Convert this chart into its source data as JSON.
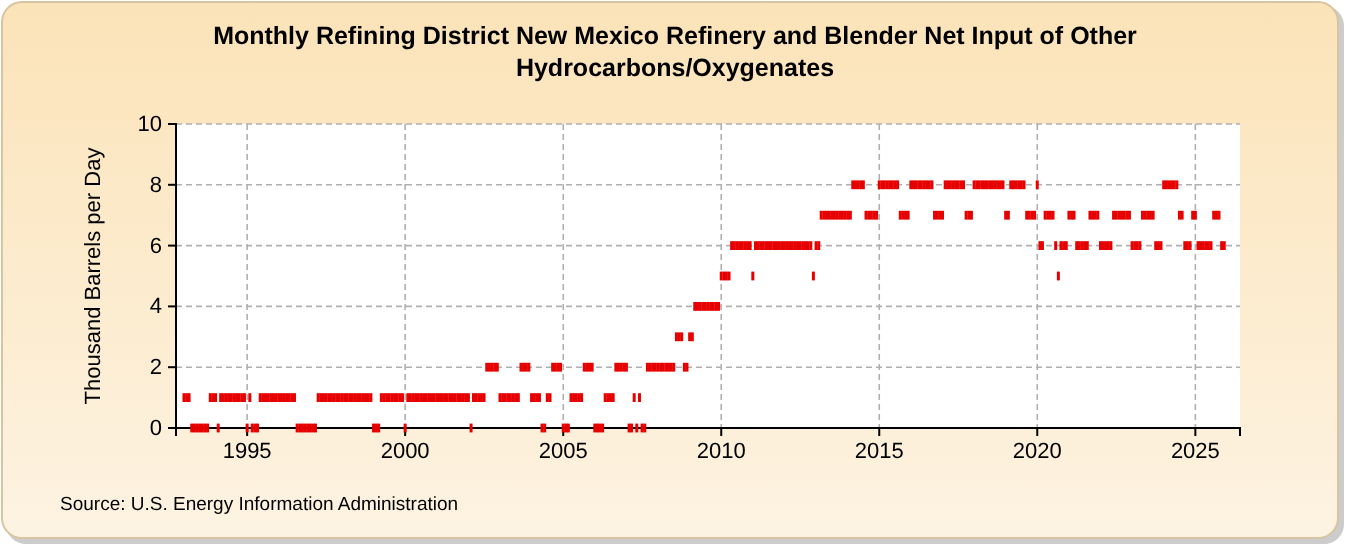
{
  "chart_data": {
    "type": "scatter",
    "title": "Monthly Refining District New Mexico Refinery and Blender Net Input of Other Hydrocarbons/Oxygenates",
    "ylabel": "Thousand Barrels per Day",
    "annotations": [
      "Source: U.S. Energy Information Administration"
    ],
    "xlim": [
      "1992-10",
      "2026-06"
    ],
    "xticks": [
      "1995",
      "2000",
      "2005",
      "2010",
      "2015",
      "2020",
      "2025"
    ],
    "ylim": [
      0,
      10
    ],
    "yticks": [
      0,
      2,
      4,
      6,
      8,
      10
    ],
    "grid": true,
    "marker": "square",
    "series": [
      {
        "color": "#e60000",
        "x": [
          "1993-01",
          "1993-02",
          "1993-03",
          "1993-04",
          "1993-05",
          "1993-06",
          "1993-07",
          "1993-08",
          "1993-09",
          "1993-10",
          "1993-11",
          "1993-12",
          "1994-01",
          "1994-02",
          "1994-03",
          "1994-04",
          "1994-05",
          "1994-06",
          "1994-07",
          "1994-08",
          "1994-09",
          "1994-10",
          "1994-11",
          "1994-12",
          "1995-01",
          "1995-02",
          "1995-03",
          "1995-04",
          "1995-05",
          "1995-06",
          "1995-07",
          "1995-08",
          "1995-09",
          "1995-10",
          "1995-11",
          "1995-12",
          "1996-01",
          "1996-02",
          "1996-03",
          "1996-04",
          "1996-05",
          "1996-06",
          "1996-07",
          "1996-08",
          "1996-09",
          "1996-10",
          "1996-11",
          "1996-12",
          "1997-01",
          "1997-02",
          "1997-03",
          "1997-04",
          "1997-05",
          "1997-06",
          "1997-07",
          "1997-08",
          "1997-09",
          "1997-10",
          "1997-11",
          "1997-12",
          "1998-01",
          "1998-02",
          "1998-03",
          "1998-04",
          "1998-05",
          "1998-06",
          "1998-07",
          "1998-08",
          "1998-09",
          "1998-10",
          "1998-11",
          "1998-12",
          "1999-01",
          "1999-02",
          "1999-03",
          "1999-04",
          "1999-05",
          "1999-06",
          "1999-07",
          "1999-08",
          "1999-09",
          "1999-10",
          "1999-11",
          "1999-12",
          "2000-01",
          "2000-02",
          "2000-03",
          "2000-04",
          "2000-05",
          "2000-06",
          "2000-07",
          "2000-08",
          "2000-09",
          "2000-10",
          "2000-11",
          "2000-12",
          "2001-01",
          "2001-02",
          "2001-03",
          "2001-04",
          "2001-05",
          "2001-06",
          "2001-07",
          "2001-08",
          "2001-09",
          "2001-10",
          "2001-11",
          "2001-12",
          "2002-01",
          "2002-02",
          "2002-03",
          "2002-04",
          "2002-05",
          "2002-06",
          "2002-07",
          "2002-08",
          "2002-09",
          "2002-10",
          "2002-11",
          "2002-12",
          "2003-01",
          "2003-02",
          "2003-03",
          "2003-04",
          "2003-05",
          "2003-06",
          "2003-07",
          "2003-08",
          "2003-09",
          "2003-10",
          "2003-11",
          "2003-12",
          "2004-01",
          "2004-02",
          "2004-03",
          "2004-04",
          "2004-05",
          "2004-06",
          "2004-07",
          "2004-08",
          "2004-09",
          "2004-10",
          "2004-11",
          "2004-12",
          "2005-01",
          "2005-02",
          "2005-03",
          "2005-04",
          "2005-05",
          "2005-06",
          "2005-07",
          "2005-08",
          "2005-09",
          "2005-10",
          "2005-11",
          "2005-12",
          "2006-01",
          "2006-02",
          "2006-03",
          "2006-04",
          "2006-05",
          "2006-06",
          "2006-07",
          "2006-08",
          "2006-09",
          "2006-10",
          "2006-11",
          "2006-12",
          "2007-01",
          "2007-02",
          "2007-03",
          "2007-04",
          "2007-05",
          "2007-06",
          "2007-07",
          "2007-08",
          "2007-09",
          "2007-10",
          "2007-11",
          "2007-12",
          "2008-01",
          "2008-02",
          "2008-03",
          "2008-04",
          "2008-05",
          "2008-06",
          "2008-07",
          "2008-08",
          "2008-09",
          "2008-10",
          "2008-11",
          "2008-12",
          "2009-01",
          "2009-02",
          "2009-03",
          "2009-04",
          "2009-05",
          "2009-06",
          "2009-07",
          "2009-08",
          "2009-09",
          "2009-10",
          "2009-11",
          "2009-12",
          "2010-01",
          "2010-02",
          "2010-03",
          "2010-04",
          "2010-05",
          "2010-06",
          "2010-07",
          "2010-08",
          "2010-09",
          "2010-10",
          "2010-11",
          "2010-12",
          "2011-01",
          "2011-02",
          "2011-03",
          "2011-04",
          "2011-05",
          "2011-06",
          "2011-07",
          "2011-08",
          "2011-09",
          "2011-10",
          "2011-11",
          "2011-12",
          "2012-01",
          "2012-02",
          "2012-03",
          "2012-04",
          "2012-05",
          "2012-06",
          "2012-07",
          "2012-08",
          "2012-09",
          "2012-10",
          "2012-11",
          "2012-12",
          "2013-01",
          "2013-02",
          "2013-03",
          "2013-04",
          "2013-05",
          "2013-06",
          "2013-07",
          "2013-08",
          "2013-09",
          "2013-10",
          "2013-11",
          "2013-12",
          "2014-01",
          "2014-02",
          "2014-03",
          "2014-04",
          "2014-05",
          "2014-06",
          "2014-07",
          "2014-08",
          "2014-09",
          "2014-10",
          "2014-11",
          "2014-12",
          "2015-01",
          "2015-02",
          "2015-03",
          "2015-04",
          "2015-05",
          "2015-06",
          "2015-07",
          "2015-08",
          "2015-09",
          "2015-10",
          "2015-11",
          "2015-12",
          "2016-01",
          "2016-02",
          "2016-03",
          "2016-04",
          "2016-05",
          "2016-06",
          "2016-07",
          "2016-08",
          "2016-09",
          "2016-10",
          "2016-11",
          "2016-12",
          "2017-01",
          "2017-02",
          "2017-03",
          "2017-04",
          "2017-05",
          "2017-06",
          "2017-07",
          "2017-08",
          "2017-09",
          "2017-10",
          "2017-11",
          "2017-12",
          "2018-01",
          "2018-02",
          "2018-03",
          "2018-04",
          "2018-05",
          "2018-06",
          "2018-07",
          "2018-08",
          "2018-09",
          "2018-10",
          "2018-11",
          "2018-12",
          "2019-01",
          "2019-02",
          "2019-03",
          "2019-04",
          "2019-05",
          "2019-06",
          "2019-07",
          "2019-08",
          "2019-09",
          "2019-10",
          "2019-11",
          "2019-12",
          "2020-01",
          "2020-02",
          "2020-03",
          "2020-04",
          "2020-05",
          "2020-06",
          "2020-07",
          "2020-08",
          "2020-09",
          "2020-10",
          "2020-11",
          "2020-12",
          "2021-01",
          "2021-02",
          "2021-03",
          "2021-04",
          "2021-05",
          "2021-06",
          "2021-07",
          "2021-08",
          "2021-09",
          "2021-10",
          "2021-11",
          "2021-12",
          "2022-01",
          "2022-02",
          "2022-03",
          "2022-04",
          "2022-05",
          "2022-06",
          "2022-07",
          "2022-08",
          "2022-09",
          "2022-10",
          "2022-11",
          "2022-12",
          "2023-01",
          "2023-02",
          "2023-03",
          "2023-04",
          "2023-05",
          "2023-06",
          "2023-07",
          "2023-08",
          "2023-09",
          "2023-10",
          "2023-11",
          "2023-12",
          "2024-01",
          "2024-02",
          "2024-03",
          "2024-04",
          "2024-05",
          "2024-06",
          "2024-07",
          "2024-08",
          "2024-09",
          "2024-10",
          "2024-11",
          "2024-12",
          "2025-01",
          "2025-02",
          "2025-03",
          "2025-04",
          "2025-05",
          "2025-06",
          "2025-07",
          "2025-08",
          "2025-09",
          "2025-10",
          "2025-11",
          "2025-12"
        ],
        "values": [
          1,
          1,
          1,
          0,
          0,
          0,
          0,
          0,
          0,
          0,
          1,
          1,
          1,
          0,
          1,
          1,
          1,
          1,
          1,
          1,
          1,
          1,
          1,
          1,
          0,
          1,
          0,
          0,
          0,
          1,
          1,
          1,
          1,
          1,
          1,
          1,
          1,
          1,
          1,
          1,
          1,
          1,
          1,
          0,
          0,
          0,
          0,
          0,
          0,
          0,
          0,
          1,
          1,
          1,
          1,
          1,
          1,
          1,
          1,
          1,
          1,
          1,
          1,
          1,
          1,
          1,
          1,
          1,
          1,
          1,
          1,
          1,
          0,
          0,
          0,
          1,
          1,
          1,
          1,
          1,
          1,
          1,
          1,
          1,
          0,
          1,
          1,
          1,
          1,
          1,
          1,
          1,
          1,
          1,
          1,
          1,
          1,
          1,
          1,
          1,
          1,
          1,
          1,
          1,
          1,
          1,
          1,
          1,
          1,
          0,
          1,
          1,
          1,
          1,
          1,
          2,
          2,
          2,
          2,
          2,
          1,
          1,
          1,
          1,
          1,
          1,
          1,
          1,
          2,
          2,
          2,
          2,
          1,
          1,
          1,
          1,
          0,
          0,
          1,
          1,
          2,
          2,
          2,
          2,
          0,
          0,
          0,
          1,
          1,
          1,
          1,
          1,
          2,
          2,
          2,
          2,
          0,
          0,
          0,
          0,
          1,
          1,
          1,
          1,
          2,
          2,
          2,
          2,
          2,
          0,
          0,
          1,
          0,
          1,
          0,
          0,
          2,
          2,
          2,
          2,
          2,
          2,
          2,
          2,
          2,
          2,
          2,
          3,
          3,
          3,
          2,
          2,
          3,
          3,
          4,
          4,
          4,
          4,
          4,
          4,
          4,
          4,
          4,
          4,
          5,
          5,
          5,
          5,
          6,
          6,
          6,
          6,
          6,
          6,
          6,
          6,
          5,
          6,
          6,
          6,
          6,
          6,
          6,
          6,
          6,
          6,
          6,
          6,
          6,
          6,
          6,
          6,
          6,
          6,
          6,
          6,
          6,
          6,
          6,
          5,
          6,
          6,
          7,
          7,
          7,
          7,
          7,
          7,
          7,
          7,
          7,
          7,
          7,
          7,
          8,
          8,
          8,
          8,
          8,
          7,
          7,
          7,
          7,
          7,
          8,
          8,
          8,
          8,
          8,
          8,
          8,
          8,
          7,
          7,
          7,
          7,
          8,
          8,
          8,
          8,
          8,
          8,
          8,
          8,
          8,
          7,
          7,
          7,
          7,
          8,
          8,
          8,
          8,
          8,
          8,
          8,
          8,
          7,
          7,
          7,
          8,
          8,
          8,
          8,
          8,
          8,
          8,
          8,
          8,
          8,
          8,
          8,
          7,
          7,
          8,
          8,
          8,
          8,
          8,
          8,
          7,
          7,
          7,
          7,
          8,
          6,
          6,
          7,
          7,
          7,
          7,
          6,
          5,
          6,
          6,
          6,
          7,
          7,
          7,
          6,
          6,
          6,
          6,
          6,
          7,
          7,
          7,
          7,
          6,
          6,
          6,
          6,
          6,
          7,
          7,
          7,
          7,
          7,
          7,
          7,
          6,
          6,
          6,
          6,
          7,
          7,
          7,
          7,
          7,
          6,
          6,
          6,
          8,
          8,
          8,
          8,
          8,
          8,
          7,
          7,
          6,
          6,
          6,
          7,
          7,
          6,
          6,
          6,
          6,
          6,
          6,
          7,
          7,
          7,
          6,
          6
        ]
      }
    ]
  }
}
